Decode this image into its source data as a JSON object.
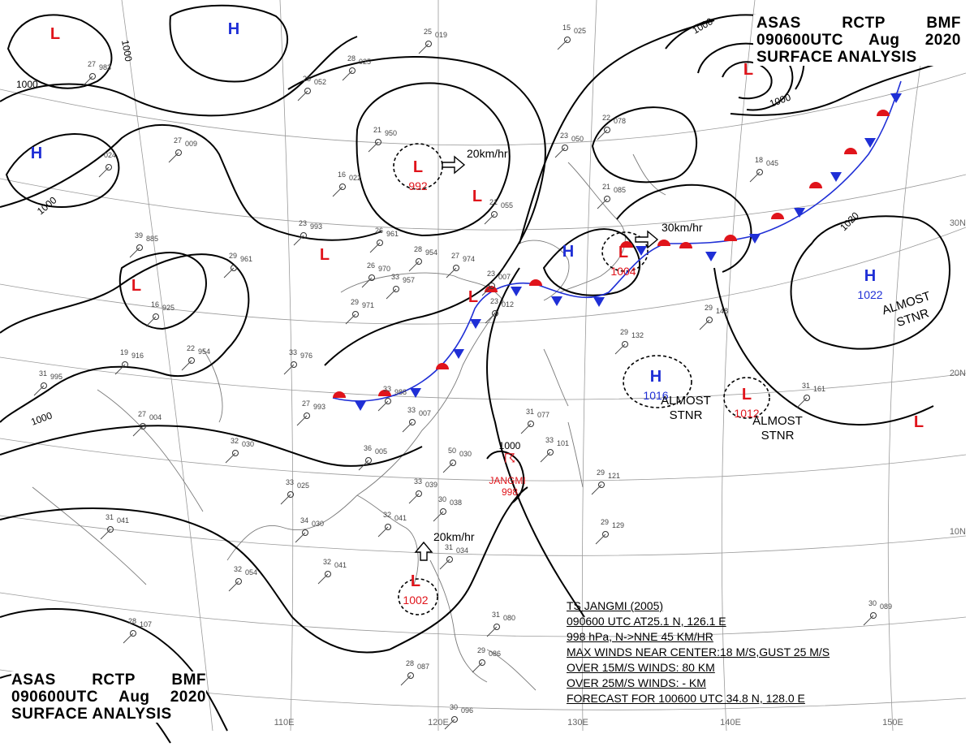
{
  "header": {
    "agency": [
      "ASAS",
      "RCTP",
      "BMF"
    ],
    "time": [
      "090600UTC",
      "Aug",
      "2020"
    ],
    "title": "SURFACE ANALYSIS"
  },
  "colors": {
    "high": "#1f2fd6",
    "low": "#e0141b",
    "cold_front": "#1f2fd6",
    "warm_front": "#e0141b",
    "isobar": "#000000",
    "grid": "#9a9a9a"
  },
  "longitude_labels": [
    "110E",
    "120E",
    "130E",
    "140E",
    "150E"
  ],
  "latitude_labels": [
    "30N",
    "20N",
    "10N"
  ],
  "isobar_labels": [
    "1000",
    "1000",
    "1000",
    "1000",
    "1000",
    "1020",
    "1000"
  ],
  "systems": [
    {
      "type": "L",
      "pressure": "",
      "name": "low-nw"
    },
    {
      "type": "H",
      "pressure": "",
      "name": "high-north"
    },
    {
      "type": "H",
      "pressure": "",
      "name": "high-west"
    },
    {
      "type": "L",
      "pressure": "992",
      "name": "low-mongolia"
    },
    {
      "type": "L",
      "pressure": "",
      "name": "low-manchuria"
    },
    {
      "type": "L",
      "pressure": "",
      "name": "low-tibet"
    },
    {
      "type": "L",
      "pressure": "",
      "name": "low-west"
    },
    {
      "type": "L",
      "pressure": "",
      "name": "low-front"
    },
    {
      "type": "L",
      "pressure": "",
      "name": "low-ne"
    },
    {
      "type": "H",
      "pressure": "",
      "name": "high-sea-of-japan"
    },
    {
      "type": "L",
      "pressure": "1004",
      "name": "low-japan"
    },
    {
      "type": "H",
      "pressure": "1022",
      "name": "high-pacific"
    },
    {
      "type": "H",
      "pressure": "1016",
      "name": "high-ryukyu"
    },
    {
      "type": "L",
      "pressure": "1012",
      "name": "low-pacific"
    },
    {
      "type": "L",
      "pressure": "",
      "name": "low-far-east"
    },
    {
      "type": "L",
      "pressure": "1002",
      "name": "low-scs"
    }
  ],
  "notes": {
    "almost_stnr": "ALMOST\nSTNR",
    "motion_1": "20km/hr",
    "motion_2": "30km/hr",
    "motion_3": "20km/hr"
  },
  "typhoon": {
    "name": "JANGMI",
    "pressure": "998",
    "isobar": "1000",
    "bulletin": [
      "TS  JANGMI  (2005)",
      "090600 UTC  AT25.1 N, 126.1 E",
      "998 hPa, N->NNE  45 KM/HR",
      "MAX WINDS NEAR CENTER:18 M/S,GUST 25 M/S",
      "OVER 15M/S WINDS: 80 KM",
      "OVER 25M/S WINDS: - KM",
      "FORECAST FOR 100600 UTC 34.8 N, 128.0 E"
    ]
  },
  "stations": [
    {
      "t": "25",
      "p": "019"
    },
    {
      "t": "15",
      "p": "025"
    },
    {
      "t": "27",
      "p": "983"
    },
    {
      "t": "28",
      "p": "025"
    },
    {
      "t": "25",
      "p": "052"
    },
    {
      "t": "21",
      "p": "950"
    },
    {
      "t": "27",
      "p": "009"
    },
    {
      "t": "23",
      "p": "050"
    },
    {
      "t": "22",
      "p": "078"
    },
    {
      "t": "024",
      "p": ""
    },
    {
      "t": "16",
      "p": "022"
    },
    {
      "t": "18",
      "p": "045"
    },
    {
      "t": "21",
      "p": "055"
    },
    {
      "t": "21",
      "p": "085"
    },
    {
      "t": "23",
      "p": "993"
    },
    {
      "t": "26",
      "p": "961"
    },
    {
      "t": "39",
      "p": "885"
    },
    {
      "t": "29",
      "p": "961"
    },
    {
      "t": "28",
      "p": "954"
    },
    {
      "t": "27",
      "p": "974"
    },
    {
      "t": "26",
      "p": "970"
    },
    {
      "t": "33",
      "p": "957"
    },
    {
      "t": "16",
      "p": "925"
    },
    {
      "t": "29",
      "p": "971"
    },
    {
      "t": "19",
      "p": "916"
    },
    {
      "t": "22",
      "p": "954"
    },
    {
      "t": "33",
      "p": "976"
    },
    {
      "t": "31",
      "p": "995"
    },
    {
      "t": "33",
      "p": "988"
    },
    {
      "t": "27",
      "p": "993"
    },
    {
      "t": "33",
      "p": "007"
    },
    {
      "t": "27",
      "p": "004"
    },
    {
      "t": "32",
      "p": "030"
    },
    {
      "t": "36",
      "p": "005"
    },
    {
      "t": "31",
      "p": "077"
    },
    {
      "t": "33",
      "p": "101"
    },
    {
      "t": "50",
      "p": "030"
    },
    {
      "t": "33",
      "p": "025"
    },
    {
      "t": "33",
      "p": "039"
    },
    {
      "t": "30",
      "p": "038"
    },
    {
      "t": "34",
      "p": "030"
    },
    {
      "t": "32",
      "p": "041"
    },
    {
      "t": "31",
      "p": "041"
    },
    {
      "t": "32",
      "p": "054"
    },
    {
      "t": "32",
      "p": "041"
    },
    {
      "t": "28",
      "p": "107"
    },
    {
      "t": "29",
      "p": "148"
    },
    {
      "t": "29",
      "p": "132"
    },
    {
      "t": "31",
      "p": "161"
    },
    {
      "t": "29",
      "p": "121"
    },
    {
      "t": "29",
      "p": "129"
    },
    {
      "t": "30",
      "p": "089"
    },
    {
      "t": "31",
      "p": "080"
    },
    {
      "t": "29",
      "p": "086"
    },
    {
      "t": "28",
      "p": "087"
    },
    {
      "t": "30",
      "p": "096"
    },
    {
      "t": "31",
      "p": "034"
    },
    {
      "t": "23",
      "p": "007"
    },
    {
      "t": "23",
      "p": "012"
    }
  ]
}
